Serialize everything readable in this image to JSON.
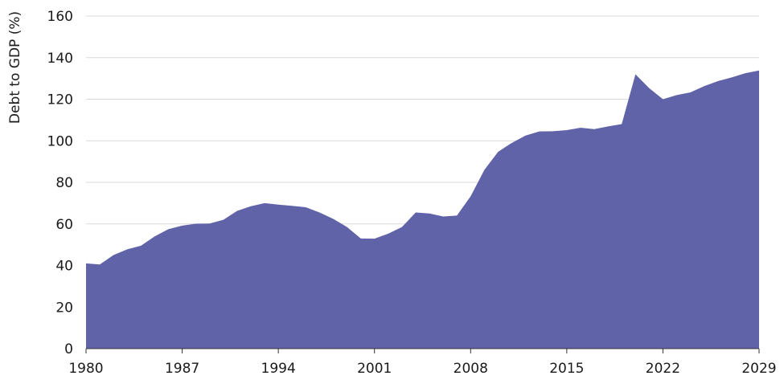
{
  "chart_data": {
    "type": "area",
    "ylabel": "Debt to GDP (%)",
    "ylim": [
      0,
      160
    ],
    "xlim": [
      1980,
      2029
    ],
    "y_ticks": [
      0,
      20,
      40,
      60,
      80,
      100,
      120,
      140,
      160
    ],
    "x_ticks": [
      1980,
      1987,
      1994,
      2001,
      2008,
      2015,
      2022,
      2029
    ],
    "grid": true,
    "color": "#6163a8",
    "series": [
      {
        "x": [
          1980,
          1981,
          1982,
          1983,
          1984,
          1985,
          1986,
          1987,
          1988,
          1989,
          1990,
          1991,
          1992,
          1993,
          1994,
          1995,
          1996,
          1997,
          1998,
          1999,
          2000,
          2001,
          2002,
          2003,
          2004,
          2005,
          2006,
          2007,
          2008,
          2009,
          2010,
          2011,
          2012,
          2013,
          2014,
          2015,
          2016,
          2017,
          2018,
          2019,
          2020,
          2021,
          2022,
          2023,
          2024,
          2025,
          2026,
          2027,
          2028,
          2029
        ],
        "values": [
          41,
          40.5,
          45,
          47.8,
          49.5,
          54,
          57.5,
          59.2,
          60.1,
          60.2,
          62,
          66.3,
          68.5,
          70,
          69.3,
          68.7,
          68,
          65.5,
          62.4,
          58.5,
          53,
          52.9,
          55.3,
          58.5,
          65.5,
          65,
          63.6,
          64,
          73.3,
          86,
          94.7,
          99,
          102.5,
          104.5,
          104.6,
          105.1,
          106.3,
          105.6,
          106.9,
          108,
          132,
          125.3,
          120,
          122,
          123.3,
          126.3,
          128.7,
          130.5,
          132.5,
          133.8
        ]
      }
    ]
  }
}
